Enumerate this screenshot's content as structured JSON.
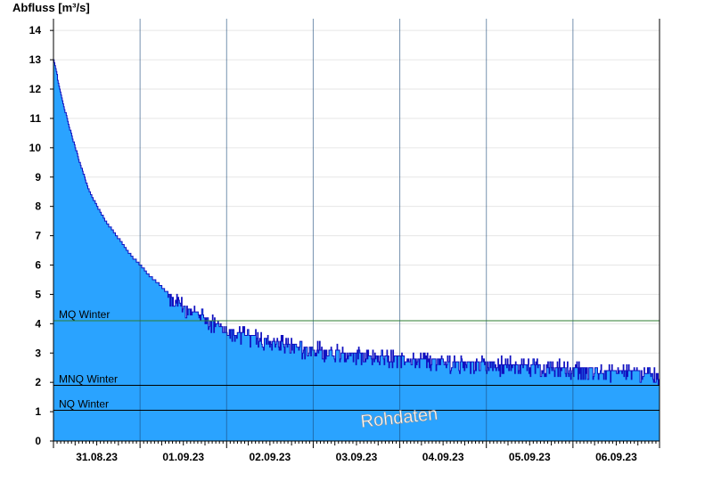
{
  "chart_data": {
    "type": "area",
    "ylabel": "Abfluss [m³/s]",
    "ylim": [
      0,
      14.4
    ],
    "y_ticks": [
      0,
      1,
      2,
      3,
      4,
      5,
      6,
      7,
      8,
      9,
      10,
      11,
      12,
      13,
      14
    ],
    "x_day_labels": [
      "31.08.23",
      "01.09.23",
      "02.09.23",
      "03.09.23",
      "04.09.23",
      "05.09.23",
      "06.09.23"
    ],
    "x_range_days": [
      0,
      7
    ],
    "day_boundaries": [
      1,
      2,
      3,
      4,
      5,
      6
    ],
    "series": [
      {
        "values_x_days": [
          0,
          0.1,
          0.2,
          0.3,
          0.4,
          0.5,
          0.6,
          0.7,
          0.8,
          0.9,
          1.0,
          1.1,
          1.2,
          1.3,
          1.4,
          1.5,
          1.6,
          1.7,
          1.8,
          1.9,
          2.0,
          2.2,
          2.4,
          2.6,
          2.8,
          3.0,
          3.3,
          3.6,
          3.9,
          4.2,
          4.5,
          4.8,
          5.1,
          5.4,
          5.7,
          6.0,
          6.3,
          6.6,
          7.0
        ],
        "values_y": [
          13.0,
          11.6,
          10.5,
          9.5,
          8.6,
          8.0,
          7.5,
          7.1,
          6.7,
          6.3,
          6.0,
          5.65,
          5.4,
          5.1,
          4.85,
          4.65,
          4.45,
          4.3,
          4.15,
          4.0,
          3.85,
          3.65,
          3.5,
          3.38,
          3.25,
          3.15,
          3.05,
          2.95,
          2.88,
          2.82,
          2.75,
          2.7,
          2.65,
          2.6,
          2.55,
          2.5,
          2.45,
          2.4,
          2.3
        ]
      }
    ],
    "reference_lines": [
      {
        "label": "MQ Winter",
        "value": 4.1,
        "color": "#2e7d32"
      },
      {
        "label": "MNQ Winter",
        "value": 1.9,
        "color": "#000000"
      },
      {
        "label": "NQ Winter",
        "value": 1.05,
        "color": "#000000"
      }
    ],
    "watermark": "Rohdaten",
    "area_color": "#2aa3ff",
    "line_color": "#1010c0",
    "grid": true
  }
}
